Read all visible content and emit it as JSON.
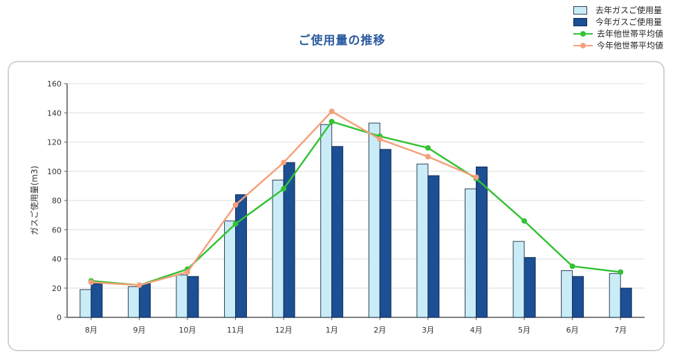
{
  "chart_data": {
    "type": "bar",
    "title": "ご使用量の推移",
    "ylabel": "ガスご使用量(m3)",
    "xlabel": "",
    "ylim": [
      0,
      160
    ],
    "yticks": [
      0,
      20,
      40,
      60,
      80,
      100,
      120,
      140,
      160
    ],
    "grid": true,
    "legend_position": "top-right",
    "categories": [
      "8月",
      "9月",
      "10月",
      "11月",
      "12月",
      "1月",
      "2月",
      "3月",
      "4月",
      "5月",
      "6月",
      "7月"
    ],
    "series": [
      {
        "name": "去年ガスご使用量",
        "type": "bar",
        "color": "#c9ecf6",
        "values": [
          19,
          21,
          29,
          66,
          94,
          132,
          133,
          105,
          88,
          52,
          32,
          30
        ]
      },
      {
        "name": "今年ガスご使用量",
        "type": "bar",
        "color": "#1c4f94",
        "values": [
          23,
          23,
          28,
          84,
          106,
          117,
          115,
          97,
          103,
          41,
          28,
          20
        ]
      },
      {
        "name": "去年他世帯平均値",
        "type": "line",
        "color": "#33c233",
        "values": [
          25,
          22,
          33,
          64,
          88,
          134,
          124,
          116,
          95,
          66,
          35,
          31
        ]
      },
      {
        "name": "今年他世帯平均値",
        "type": "line",
        "color": "#f4a07c",
        "values": [
          24,
          22,
          31,
          77,
          106,
          141,
          122,
          110,
          96,
          null,
          null,
          null
        ]
      }
    ]
  }
}
